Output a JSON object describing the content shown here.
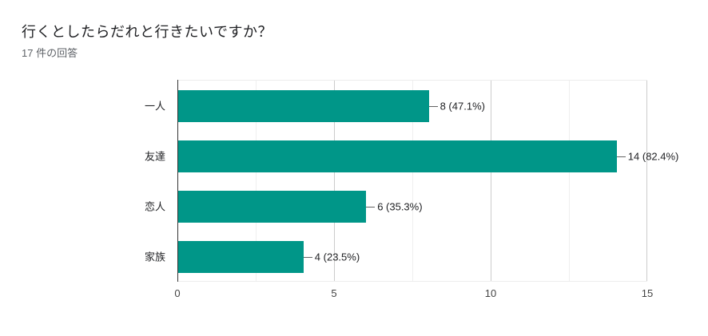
{
  "header": {
    "title": "行くとしたらだれと行きたいですか？",
    "response_count": "17 件の回答"
  },
  "chart_data": {
    "type": "bar",
    "orientation": "horizontal",
    "title": "行くとしたらだれと行きたいですか？",
    "subtitle": "17 件の回答",
    "categories": [
      "一人",
      "友達",
      "恋人",
      "家族"
    ],
    "values": [
      8,
      14,
      6,
      4
    ],
    "annotations": [
      "8 (47.1%)",
      "14 (82.4%)",
      "6 (35.3%)",
      "4 (23.5%)"
    ],
    "percentages": [
      47.1,
      82.4,
      35.3,
      23.5
    ],
    "total_responses": 17,
    "x_ticks": [
      0,
      5,
      10,
      15
    ],
    "xlim": [
      0,
      15
    ],
    "xlabel": "",
    "ylabel": "",
    "grid": "vertical-major-and-minor",
    "legend": "none",
    "colors": {
      "bar": "#009688",
      "baseline": "#333333",
      "grid_major": "#cccccc",
      "grid_minor": "#efefef",
      "tick_label": "#444444",
      "category_label": "#202124",
      "annotation_label": "#202124",
      "annotation_stem": "#636363",
      "title": "#202124",
      "subtitle": "#5f6368",
      "background": "#ffffff"
    }
  }
}
